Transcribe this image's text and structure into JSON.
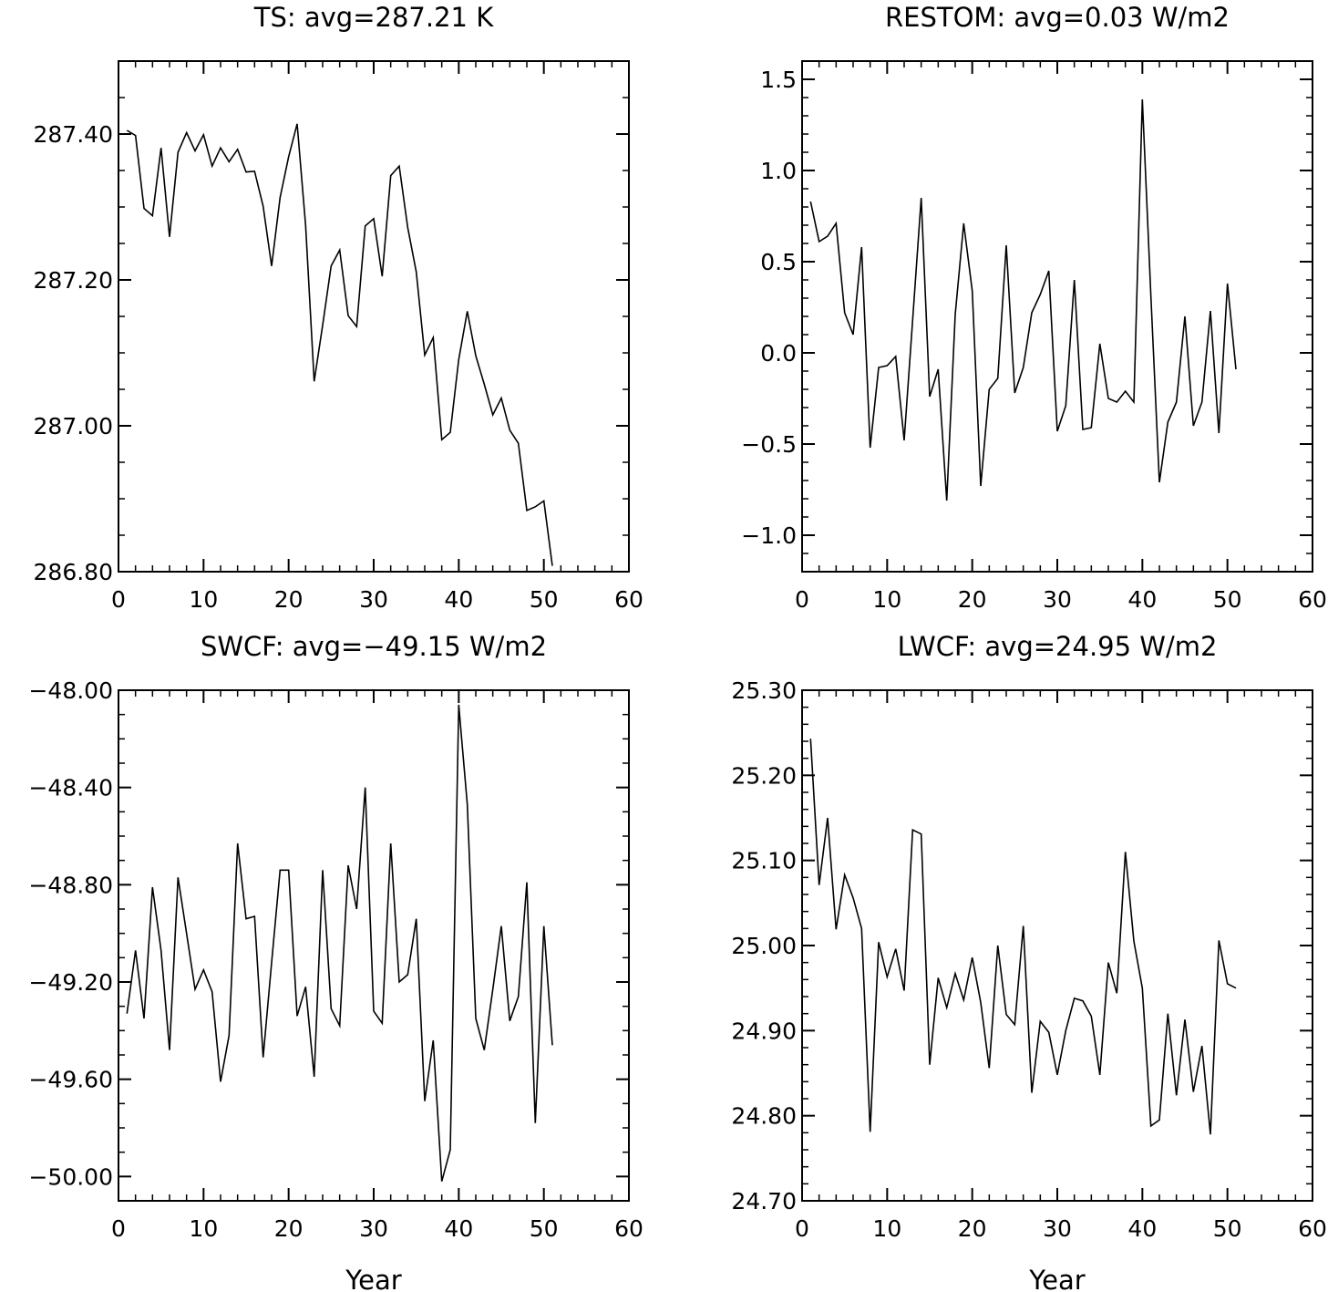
{
  "chart_data": [
    {
      "type": "line",
      "title": "TS: avg=287.21 K",
      "xlabel": "",
      "xlim": [
        0,
        60
      ],
      "ylim": [
        286.8,
        287.5
      ],
      "x_ticks": [
        0,
        10,
        20,
        30,
        40,
        50,
        60
      ],
      "x_tick_labels": [
        "0",
        "10",
        "20",
        "30",
        "40",
        "50",
        "60"
      ],
      "y_ticks": [
        286.8,
        287.0,
        287.2,
        287.4
      ],
      "y_tick_labels": [
        "286.80",
        "287.00",
        "287.20",
        "287.40"
      ],
      "y_minor_step": 0.05,
      "x": [
        1,
        2,
        3,
        4,
        5,
        6,
        7,
        8,
        9,
        10,
        11,
        12,
        13,
        14,
        15,
        16,
        17,
        18,
        19,
        20,
        21,
        22,
        23,
        24,
        25,
        26,
        27,
        28,
        29,
        30,
        31,
        32,
        33,
        34,
        35,
        36,
        37,
        38,
        39,
        40,
        41,
        42,
        43,
        44,
        45,
        46,
        47,
        48,
        49,
        50,
        51
      ],
      "values": [
        287.405,
        287.398,
        287.298,
        287.288,
        287.381,
        287.259,
        287.375,
        287.402,
        287.377,
        287.399,
        287.356,
        287.381,
        287.362,
        287.379,
        287.348,
        287.349,
        287.301,
        287.219,
        287.313,
        287.369,
        287.414,
        287.275,
        287.061,
        287.138,
        287.219,
        287.241,
        287.151,
        287.136,
        287.274,
        287.284,
        287.205,
        287.343,
        287.356,
        287.272,
        287.211,
        287.097,
        287.121,
        286.981,
        286.991,
        287.091,
        287.157,
        287.096,
        287.057,
        287.015,
        287.038,
        286.994,
        286.976,
        286.884,
        286.889,
        286.897,
        286.808
      ]
    },
    {
      "type": "line",
      "title": "RESTOM: avg=0.03 W/m2",
      "xlabel": "",
      "xlim": [
        0,
        60
      ],
      "ylim": [
        -1.2,
        1.6
      ],
      "x_ticks": [
        0,
        10,
        20,
        30,
        40,
        50,
        60
      ],
      "x_tick_labels": [
        "0",
        "10",
        "20",
        "30",
        "40",
        "50",
        "60"
      ],
      "y_ticks": [
        -1.0,
        -0.5,
        0.0,
        0.5,
        1.0,
        1.5
      ],
      "y_tick_labels": [
        "−1.0",
        "−0.5",
        "0.0",
        "0.5",
        "1.0",
        "1.5"
      ],
      "y_minor_step": 0.1,
      "x": [
        1,
        2,
        3,
        4,
        5,
        6,
        7,
        8,
        9,
        10,
        11,
        12,
        13,
        14,
        15,
        16,
        17,
        18,
        19,
        20,
        21,
        22,
        23,
        24,
        25,
        26,
        27,
        28,
        29,
        30,
        31,
        32,
        33,
        34,
        35,
        36,
        37,
        38,
        39,
        40,
        41,
        42,
        43,
        44,
        45,
        46,
        47,
        48,
        49,
        50,
        51
      ],
      "values": [
        0.83,
        0.61,
        0.64,
        0.71,
        0.22,
        0.1,
        0.58,
        -0.52,
        -0.08,
        -0.07,
        -0.02,
        -0.48,
        0.18,
        0.85,
        -0.24,
        -0.09,
        -0.81,
        0.21,
        0.71,
        0.34,
        -0.73,
        -0.2,
        -0.14,
        0.59,
        -0.22,
        -0.08,
        0.22,
        0.32,
        0.45,
        -0.43,
        -0.29,
        0.4,
        -0.42,
        -0.41,
        0.05,
        -0.25,
        -0.27,
        -0.21,
        -0.27,
        1.39,
        0.31,
        -0.71,
        -0.38,
        -0.27,
        0.2,
        -0.4,
        -0.27,
        0.23,
        -0.44,
        0.38,
        -0.09
      ]
    },
    {
      "type": "line",
      "title": "SWCF: avg=−49.15 W/m2",
      "xlabel": "Year",
      "xlim": [
        0,
        60
      ],
      "ylim": [
        -50.1,
        -48.0
      ],
      "x_ticks": [
        0,
        10,
        20,
        30,
        40,
        50,
        60
      ],
      "x_tick_labels": [
        "0",
        "10",
        "20",
        "30",
        "40",
        "50",
        "60"
      ],
      "y_ticks": [
        -48.0,
        -48.4,
        -48.8,
        -49.2,
        -49.6,
        -50.0
      ],
      "y_tick_labels": [
        "−48.00",
        "−48.40",
        "−48.80",
        "−49.20",
        "−49.60",
        "−50.00"
      ],
      "y_minor_step": 0.1,
      "x": [
        1,
        2,
        3,
        4,
        5,
        6,
        7,
        8,
        9,
        10,
        11,
        12,
        13,
        14,
        15,
        16,
        17,
        18,
        19,
        20,
        21,
        22,
        23,
        24,
        25,
        26,
        27,
        28,
        29,
        30,
        31,
        32,
        33,
        34,
        35,
        36,
        37,
        38,
        39,
        40,
        41,
        42,
        43,
        44,
        45,
        46,
        47,
        48,
        49,
        50,
        51
      ],
      "values": [
        -49.33,
        -49.07,
        -49.35,
        -48.81,
        -49.07,
        -49.48,
        -48.77,
        -49.0,
        -49.23,
        -49.15,
        -49.24,
        -49.61,
        -49.42,
        -48.63,
        -48.94,
        -48.93,
        -49.51,
        -49.12,
        -48.74,
        -48.74,
        -49.34,
        -49.22,
        -49.59,
        -48.74,
        -49.31,
        -49.38,
        -48.72,
        -48.9,
        -48.4,
        -49.32,
        -49.37,
        -48.63,
        -49.2,
        -49.17,
        -48.94,
        -49.69,
        -49.44,
        -50.02,
        -49.89,
        -48.06,
        -48.47,
        -49.35,
        -49.48,
        -49.23,
        -48.97,
        -49.36,
        -49.26,
        -48.79,
        -49.78,
        -48.97,
        -49.46
      ]
    },
    {
      "type": "line",
      "title": "LWCF: avg=24.95 W/m2",
      "xlabel": "Year",
      "xlim": [
        0,
        60
      ],
      "ylim": [
        24.7,
        25.3
      ],
      "x_ticks": [
        0,
        10,
        20,
        30,
        40,
        50,
        60
      ],
      "x_tick_labels": [
        "0",
        "10",
        "20",
        "30",
        "40",
        "50",
        "60"
      ],
      "y_ticks": [
        24.7,
        24.8,
        24.9,
        25.0,
        25.1,
        25.2,
        25.3
      ],
      "y_tick_labels": [
        "24.70",
        "24.80",
        "24.90",
        "25.00",
        "25.10",
        "25.20",
        "25.30"
      ],
      "y_minor_step": 0.02,
      "x": [
        1,
        2,
        3,
        4,
        5,
        6,
        7,
        8,
        9,
        10,
        11,
        12,
        13,
        14,
        15,
        16,
        17,
        18,
        19,
        20,
        21,
        22,
        23,
        24,
        25,
        26,
        27,
        28,
        29,
        30,
        31,
        32,
        33,
        34,
        35,
        36,
        37,
        38,
        39,
        40,
        41,
        42,
        43,
        44,
        45,
        46,
        47,
        48,
        49,
        50,
        51
      ],
      "values": [
        25.243,
        25.071,
        25.15,
        25.019,
        25.083,
        25.056,
        25.02,
        24.781,
        25.004,
        24.963,
        24.996,
        24.947,
        25.136,
        25.131,
        24.86,
        24.962,
        24.927,
        24.967,
        24.936,
        24.986,
        24.933,
        24.856,
        25.0,
        24.919,
        24.907,
        25.023,
        24.827,
        24.911,
        24.898,
        24.848,
        24.9,
        24.938,
        24.935,
        24.917,
        24.848,
        24.98,
        24.944,
        25.11,
        25.005,
        24.95,
        24.788,
        24.795,
        24.92,
        24.824,
        24.913,
        24.828,
        24.882,
        24.778,
        25.006,
        24.955,
        24.95
      ]
    }
  ]
}
